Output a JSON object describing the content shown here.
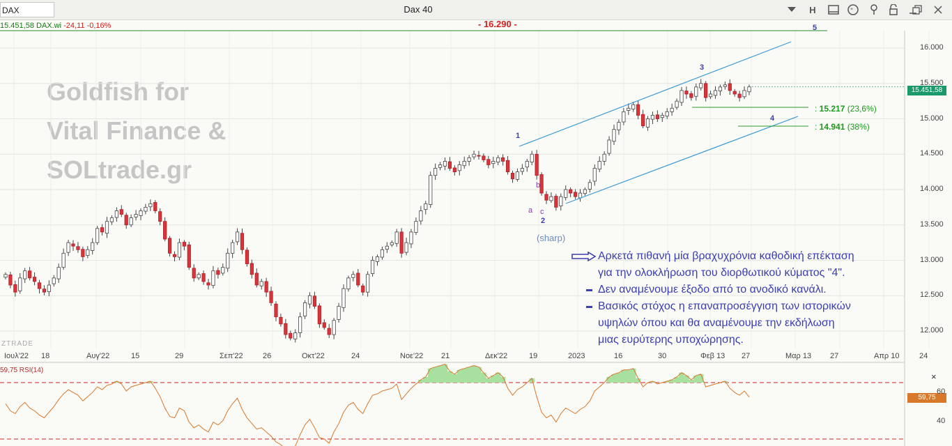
{
  "toolbar": {
    "symbol": "DAX",
    "title": "Dax 40",
    "buttons": [
      "chevron-down-icon",
      "h-icon",
      "window-icon",
      "chat-icon",
      "pin-icon",
      "lock-icon",
      "minimize-icon",
      "restore-icon",
      "close-icon"
    ],
    "h_label": "H"
  },
  "info": {
    "price": "15.451,58",
    "name": "DAX.wi",
    "change": "-24,11",
    "change_pct": "-0,16%"
  },
  "watermark": [
    "Goldfish for",
    "Vital Finance &",
    "SOLtrade.gr"
  ],
  "brand": "ZTRADE",
  "last_price_tag": "15.451,58",
  "resistance_label": "- 16.290 -",
  "wave_labels": {
    "w1": "1",
    "w2": "2",
    "w3": "3",
    "w4": "4",
    "w5": "5",
    "a": "a",
    "b": "b",
    "c": "c",
    "sharp": "(sharp)"
  },
  "fib_levels": [
    {
      "prefix": ": ",
      "value": "15.217",
      "pct": "(23,6%)"
    },
    {
      "prefix": ": ",
      "value": "14.941",
      "pct": "(38%)"
    }
  ],
  "note": {
    "line1": "Αρκετά πιθανή μία βραχυχρόνια καθοδική επέκταση",
    "line2": "για την ολοκλήρωση του διορθωτικού κύματος \"4\".",
    "line3": "Δεν αναμένουμε έξοδο από το ανοδικό κανάλι.",
    "line4": "Βασικός στόχος η επαναπροσέγγιση των ιστορικών",
    "line5": "υψηλών όπου και θα αναμένουμε την εκδήλωση",
    "line6": "μιας ευρύτερης υποχώρησης."
  },
  "rsi": {
    "label": "59,75 RSI(14)",
    "tag": "59,75",
    "ticks": [
      "60",
      "40"
    ],
    "close_label": "×"
  },
  "chart_data": {
    "type": "candlestick",
    "title": "Dax 40",
    "y_ticks": [
      "16.000",
      "15.500",
      "15.000",
      "14.500",
      "14.000",
      "13.500",
      "13.000",
      "12.500",
      "12.000"
    ],
    "ylim": [
      11800,
      16400
    ],
    "x_ticks": [
      "Ιουλ'22",
      "18",
      "Αυγ'22",
      "15",
      "29",
      "Σεπ'22",
      "26",
      "Οκτ'22",
      "24",
      "Νοε'22",
      "21",
      "Δεκ'22",
      "19",
      "2023",
      "16",
      "30",
      "Φεβ 13",
      "27",
      "Μαρ 13",
      "27",
      "Απρ 10",
      "24"
    ],
    "closes": [
      12800,
      12650,
      12550,
      12750,
      12850,
      12750,
      12700,
      12600,
      12550,
      12650,
      12750,
      12900,
      13100,
      13250,
      13200,
      13150,
      13050,
      13150,
      13250,
      13450,
      13400,
      13550,
      13600,
      13700,
      13650,
      13500,
      13600,
      13650,
      13700,
      13750,
      13800,
      13700,
      13550,
      13300,
      13100,
      13050,
      13250,
      13200,
      12900,
      12750,
      12800,
      12700,
      12650,
      12850,
      12800,
      12900,
      13100,
      13250,
      13400,
      13150,
      12950,
      12800,
      12650,
      12700,
      12550,
      12400,
      12200,
      12100,
      11950,
      11900,
      11975,
      12200,
      12400,
      12500,
      12350,
      12100,
      12050,
      11950,
      12150,
      12350,
      12600,
      12750,
      12800,
      12650,
      12550,
      12800,
      13000,
      13050,
      13150,
      13200,
      13250,
      13400,
      13100,
      13250,
      13400,
      13550,
      13700,
      13800,
      14200,
      14300,
      14350,
      14400,
      14300,
      14250,
      14350,
      14400,
      14450,
      14500,
      14480,
      14420,
      14350,
      14400,
      14450,
      14400,
      14250,
      14150,
      14250,
      14300,
      14400,
      14500,
      14200,
      13950,
      13850,
      13900,
      13750,
      13900,
      14000,
      13950,
      13900,
      13950,
      14000,
      14100,
      14300,
      14400,
      14500,
      14700,
      14850,
      14950,
      15100,
      15150,
      15200,
      15050,
      14900,
      15000,
      15050,
      15000,
      15050,
      15100,
      15150,
      15250,
      15400,
      15350,
      15300,
      15450,
      15500,
      15300,
      15350,
      15400,
      15450,
      15480,
      15400,
      15350,
      15300,
      15400,
      15451.58
    ],
    "channel_upper": {
      "from": "Δεκ'22 13 (14650)",
      "to": "Μαρ 13 (16100)"
    },
    "channel_lower": {
      "from": "Ιαν 2023 (13850)",
      "to": "Μαρ 13 (15050)"
    },
    "horizontal_levels": [
      16290,
      15217,
      14941
    ],
    "rsi_levels": [
      70,
      30
    ],
    "rsi_values": [
      55,
      50,
      48,
      53,
      56,
      52,
      50,
      47,
      45,
      49,
      53,
      58,
      62,
      65,
      63,
      61,
      57,
      60,
      63,
      67,
      65,
      68,
      69,
      71,
      69,
      64,
      67,
      68,
      69,
      70,
      71,
      66,
      60,
      52,
      46,
      45,
      52,
      50,
      42,
      38,
      40,
      37,
      35,
      42,
      40,
      43,
      50,
      55,
      59,
      51,
      45,
      41,
      37,
      38,
      35,
      32,
      28,
      26,
      23,
      22,
      25,
      33,
      40,
      44,
      38,
      31,
      30,
      27,
      35,
      41,
      49,
      54,
      56,
      51,
      48,
      55,
      61,
      62,
      64,
      65,
      66,
      69,
      58,
      62,
      66,
      69,
      72,
      74,
      80,
      81,
      82,
      83,
      78,
      76,
      79,
      80,
      81,
      82,
      81,
      77,
      73,
      75,
      77,
      74,
      66,
      61,
      65,
      67,
      70,
      73,
      60,
      49,
      45,
      47,
      42,
      48,
      52,
      50,
      48,
      51,
      53,
      57,
      64,
      67,
      70,
      74,
      76,
      77,
      79,
      79,
      80,
      73,
      67,
      70,
      71,
      69,
      70,
      71,
      72,
      74,
      77,
      75,
      72,
      75,
      76,
      67,
      68,
      69,
      70,
      71,
      66,
      63,
      61,
      64,
      59.75
    ]
  }
}
